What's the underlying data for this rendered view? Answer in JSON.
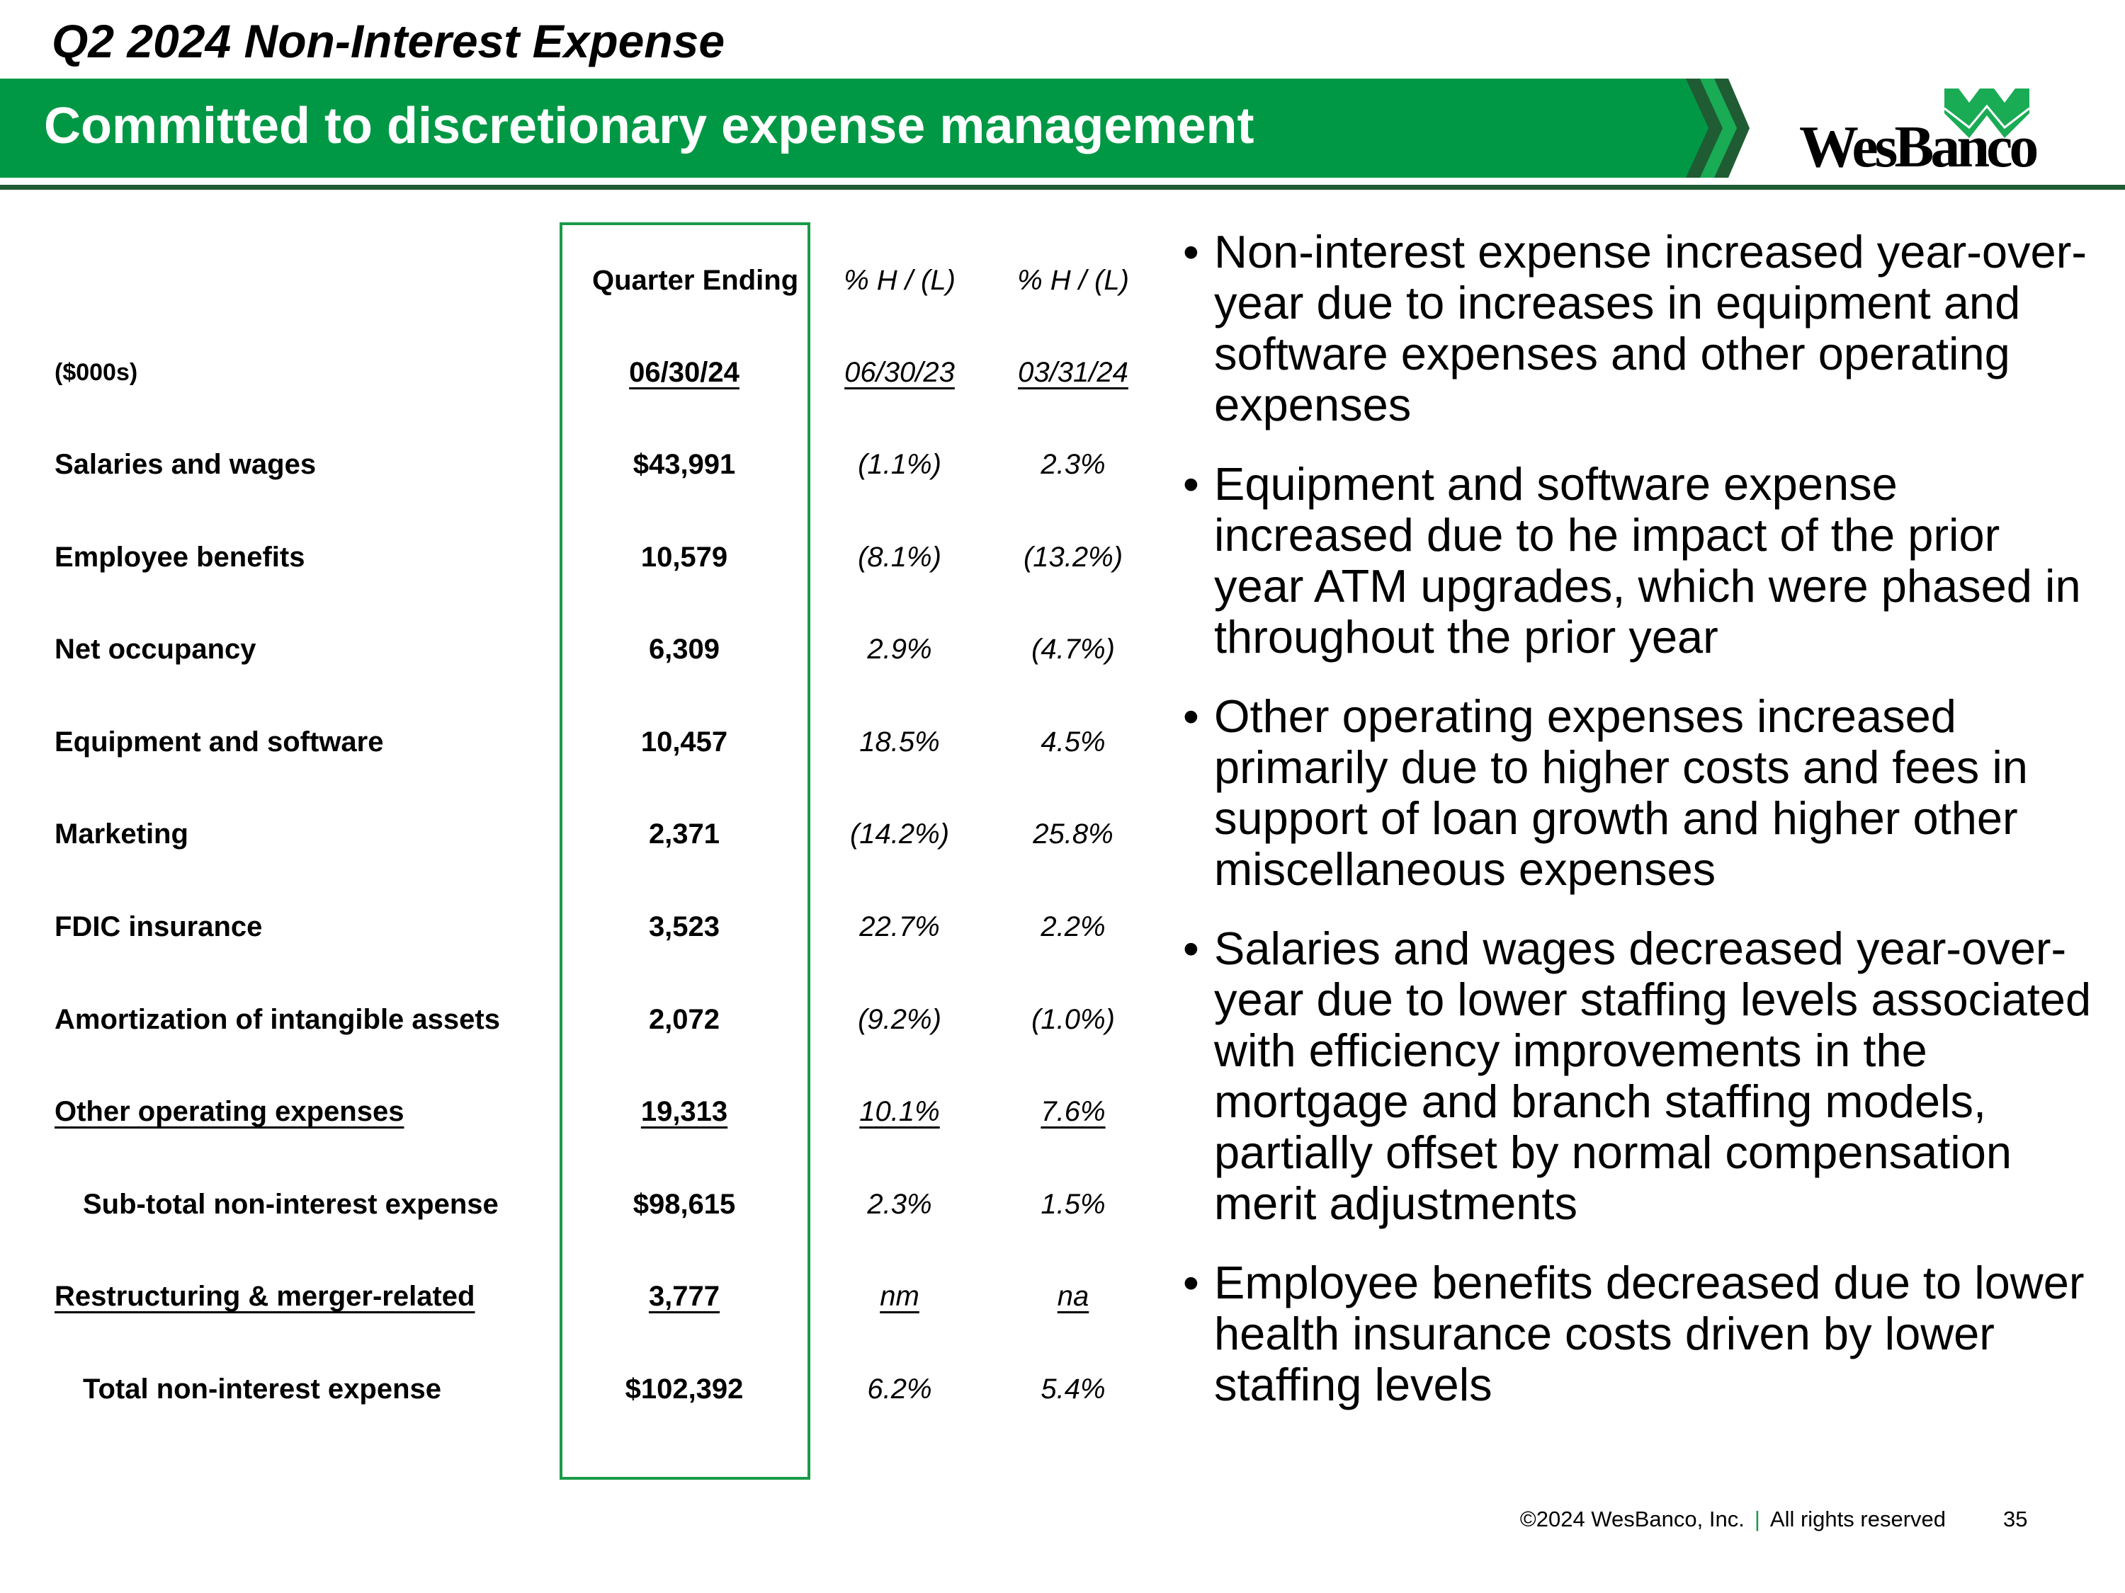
{
  "slide": {
    "title": "Q2 2024 Non-Interest Expense",
    "banner": "Committed to discretionary expense management",
    "logo_text": "WesBanco",
    "brand_green": "#009845",
    "dark_green": "#1f5c33"
  },
  "table": {
    "header": {
      "label": "",
      "col1": "Quarter Ending",
      "col2": "% H / (L)",
      "col3": "% H / (L)"
    },
    "dates": {
      "label": "($000s)",
      "col1": "06/30/24",
      "col2": "06/30/23",
      "col3": "03/31/24"
    },
    "rows": [
      {
        "label": "Salaries and wages",
        "value": "$43,991",
        "yoy": "(1.1%)",
        "qoq": "2.3%"
      },
      {
        "label": "Employee benefits",
        "value": "10,579",
        "yoy": "(8.1%)",
        "qoq": "(13.2%)"
      },
      {
        "label": "Net occupancy",
        "value": "6,309",
        "yoy": "2.9%",
        "qoq": "(4.7%)"
      },
      {
        "label": "Equipment and software",
        "value": "10,457",
        "yoy": "18.5%",
        "qoq": "4.5%"
      },
      {
        "label": "Marketing",
        "value": "2,371",
        "yoy": "(14.2%)",
        "qoq": "25.8%"
      },
      {
        "label": "FDIC insurance",
        "value": "3,523",
        "yoy": "22.7%",
        "qoq": "2.2%"
      },
      {
        "label": "Amortization of intangible assets",
        "value": "2,072",
        "yoy": "(9.2%)",
        "qoq": "(1.0%)"
      },
      {
        "label": "Other operating expenses",
        "value": "19,313",
        "yoy": "10.1%",
        "qoq": "7.6%"
      },
      {
        "label": "Sub-total non-interest expense",
        "value": "$98,615",
        "yoy": "2.3%",
        "qoq": "1.5%"
      },
      {
        "label": "Restructuring & merger-related",
        "value": "3,777",
        "yoy": "nm",
        "qoq": "na"
      },
      {
        "label": "Total non-interest expense",
        "value": "$102,392",
        "yoy": "6.2%",
        "qoq": "5.4%"
      }
    ]
  },
  "bullets": [
    "Non-interest expense increased year-over-year due to increases in equipment and software expenses and other operating expenses",
    "Equipment and software expense increased due to he impact of the prior year ATM upgrades, which were phased in throughout the prior year",
    "Other operating expenses increased primarily due to higher costs and fees in support of loan growth and higher other miscellaneous expenses",
    "Salaries and wages decreased year-over-year due to lower staffing levels associated with efficiency improvements in the mortgage and branch staffing models, partially offset by normal compensation merit adjustments",
    "Employee benefits decreased due to lower health insurance costs driven by lower staffing levels"
  ],
  "footer": {
    "copyright": "©2024 WesBanco, Inc.",
    "separator": "|",
    "rights": "All rights reserved",
    "page": "35"
  }
}
